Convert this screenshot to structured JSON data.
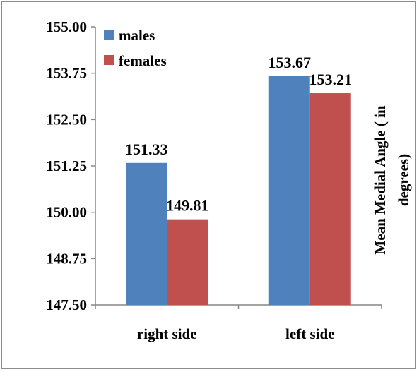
{
  "chart_data": {
    "type": "bar",
    "categories": [
      "right side",
      "left side"
    ],
    "series": [
      {
        "name": "males",
        "values": [
          151.33,
          153.67
        ],
        "color": "#4f81bd"
      },
      {
        "name": "females",
        "values": [
          149.81,
          153.21
        ],
        "color": "#c0504d"
      }
    ],
    "data_labels": [
      [
        "151.33",
        "153.67"
      ],
      [
        "149.81",
        "153.21"
      ]
    ],
    "y_ticks": [
      "147.50",
      "148.75",
      "150.00",
      "151.25",
      "152.50",
      "153.75",
      "155.00"
    ],
    "ylim": [
      147.5,
      155
    ],
    "ylabel_lines": [
      "Mean Medial Angle ( in",
      "degrees)"
    ],
    "ylabel_position": "right",
    "xlabel": "",
    "title": "",
    "legend_position": "top-left",
    "grid": false
  }
}
